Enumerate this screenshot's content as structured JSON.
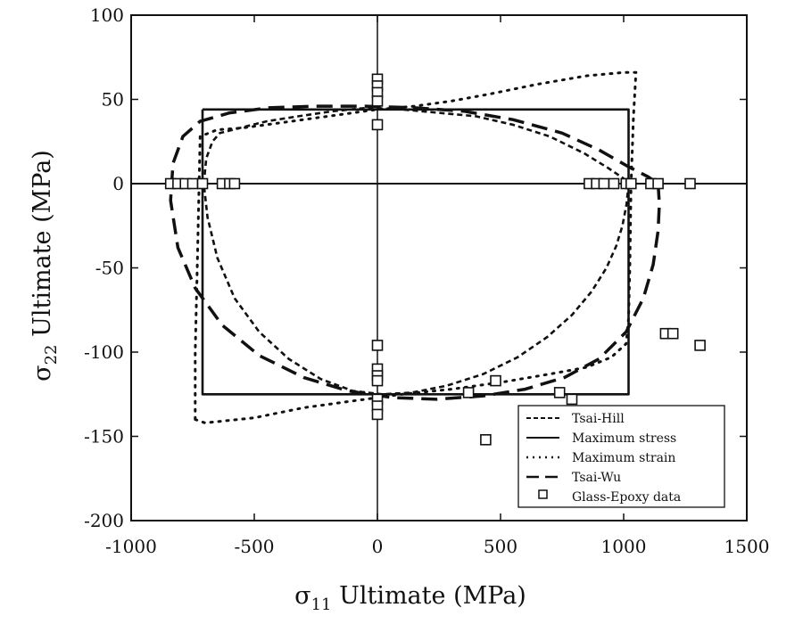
{
  "chart_data": {
    "type": "line",
    "xlabel_symbol": "σ",
    "xlabel_sub": "11",
    "xlabel_rest": " Ultimate (MPa)",
    "ylabel_symbol": "σ",
    "ylabel_sub": "22",
    "ylabel_rest": " Ultimate (MPa)",
    "xlim": [
      -1000,
      1500
    ],
    "ylim": [
      -200,
      100
    ],
    "xticks": [
      -1000,
      -500,
      0,
      500,
      1000,
      1500
    ],
    "yticks": [
      -200,
      -150,
      -100,
      -50,
      0,
      50,
      100
    ],
    "x_tick_labels": [
      "-1000",
      "-500",
      "0",
      "500",
      "1000",
      "1500"
    ],
    "y_tick_labels": [
      "-200",
      "-150",
      "-100",
      "-50",
      "0",
      "50",
      "100"
    ],
    "grid": false,
    "legend_position": "bottom-right",
    "series": [
      {
        "name": "Tsai-Hill",
        "style": "short-dash",
        "points": [
          [
            1020,
            0
          ],
          [
            1012,
            -12
          ],
          [
            995,
            -25
          ],
          [
            970,
            -37
          ],
          [
            930,
            -50
          ],
          [
            870,
            -64
          ],
          [
            790,
            -78
          ],
          [
            690,
            -91
          ],
          [
            570,
            -103
          ],
          [
            430,
            -113
          ],
          [
            280,
            -120
          ],
          [
            140,
            -124
          ],
          [
            20,
            -125
          ],
          [
            -100,
            -123
          ],
          [
            -230,
            -116
          ],
          [
            -360,
            -104
          ],
          [
            -480,
            -88
          ],
          [
            -580,
            -68
          ],
          [
            -650,
            -44
          ],
          [
            -690,
            -20
          ],
          [
            -705,
            0
          ],
          [
            -695,
            15
          ],
          [
            -670,
            25
          ],
          [
            -640,
            30
          ],
          [
            -560,
            33
          ],
          [
            -450,
            37
          ],
          [
            -320,
            40
          ],
          [
            -180,
            43
          ],
          [
            -40,
            45
          ],
          [
            100,
            44
          ],
          [
            250,
            42
          ],
          [
            400,
            40
          ],
          [
            550,
            35
          ],
          [
            700,
            28
          ],
          [
            840,
            18
          ],
          [
            940,
            9
          ],
          [
            1000,
            3
          ],
          [
            1020,
            0
          ]
        ]
      },
      {
        "name": "Maximum stress",
        "style": "solid",
        "points": [
          [
            -710,
            44
          ],
          [
            1020,
            44
          ],
          [
            1020,
            -125
          ],
          [
            -710,
            -125
          ],
          [
            -710,
            44
          ]
        ]
      },
      {
        "name": "Maximum strain",
        "style": "dotted",
        "points": [
          [
            -740,
            -140
          ],
          [
            -700,
            -142
          ],
          [
            -500,
            -139
          ],
          [
            -300,
            -133
          ],
          [
            -100,
            -129
          ],
          [
            100,
            -125
          ],
          [
            300,
            -122
          ],
          [
            500,
            -118
          ],
          [
            700,
            -113
          ],
          [
            850,
            -109
          ],
          [
            950,
            -103
          ],
          [
            1010,
            -95
          ],
          [
            1020,
            -80
          ],
          [
            1025,
            -50
          ],
          [
            1030,
            0
          ],
          [
            1040,
            40
          ],
          [
            1050,
            66
          ],
          [
            1000,
            66
          ],
          [
            850,
            64
          ],
          [
            650,
            59
          ],
          [
            450,
            53
          ],
          [
            300,
            49
          ],
          [
            150,
            46
          ],
          [
            0,
            44
          ],
          [
            -200,
            40
          ],
          [
            -400,
            36
          ],
          [
            -550,
            33
          ],
          [
            -650,
            32
          ],
          [
            -720,
            28
          ],
          [
            -730,
            -40
          ],
          [
            -740,
            -100
          ],
          [
            -740,
            -140
          ]
        ]
      },
      {
        "name": "Tsai-Wu",
        "style": "long-dash",
        "points": [
          [
            1140,
            0
          ],
          [
            1145,
            -12
          ],
          [
            1140,
            -28
          ],
          [
            1120,
            -48
          ],
          [
            1080,
            -68
          ],
          [
            1010,
            -88
          ],
          [
            900,
            -104
          ],
          [
            760,
            -115
          ],
          [
            600,
            -122
          ],
          [
            430,
            -126
          ],
          [
            240,
            -128
          ],
          [
            60,
            -127
          ],
          [
            -120,
            -123
          ],
          [
            -300,
            -115
          ],
          [
            -480,
            -102
          ],
          [
            -630,
            -84
          ],
          [
            -740,
            -62
          ],
          [
            -810,
            -38
          ],
          [
            -840,
            -10
          ],
          [
            -830,
            12
          ],
          [
            -790,
            28
          ],
          [
            -720,
            37
          ],
          [
            -600,
            42
          ],
          [
            -440,
            45
          ],
          [
            -250,
            46
          ],
          [
            -50,
            46
          ],
          [
            150,
            45
          ],
          [
            350,
            43
          ],
          [
            550,
            38
          ],
          [
            750,
            30
          ],
          [
            900,
            20
          ],
          [
            1020,
            10
          ],
          [
            1100,
            4
          ],
          [
            1140,
            0
          ]
        ]
      }
    ],
    "data_series": {
      "name": "Glass-Epoxy data",
      "points": [
        [
          0,
          62
        ],
        [
          0,
          58
        ],
        [
          0,
          54
        ],
        [
          0,
          49
        ],
        [
          0,
          35
        ],
        [
          -840,
          0
        ],
        [
          -810,
          0
        ],
        [
          -780,
          0
        ],
        [
          -750,
          0
        ],
        [
          -710,
          0
        ],
        [
          -630,
          0
        ],
        [
          -600,
          0
        ],
        [
          -580,
          0
        ],
        [
          860,
          0
        ],
        [
          890,
          0
        ],
        [
          920,
          0
        ],
        [
          960,
          0
        ],
        [
          1010,
          0
        ],
        [
          1030,
          0
        ],
        [
          1110,
          0
        ],
        [
          1140,
          0
        ],
        [
          1270,
          0
        ],
        [
          0,
          -96
        ],
        [
          0,
          -110
        ],
        [
          0,
          -114
        ],
        [
          0,
          -117
        ],
        [
          0,
          -128
        ],
        [
          0,
          -132
        ],
        [
          0,
          -137
        ],
        [
          370,
          -124
        ],
        [
          480,
          -117
        ],
        [
          740,
          -124
        ],
        [
          790,
          -128
        ],
        [
          440,
          -152
        ],
        [
          1170,
          -89
        ],
        [
          1200,
          -89
        ],
        [
          1310,
          -96
        ]
      ]
    }
  }
}
